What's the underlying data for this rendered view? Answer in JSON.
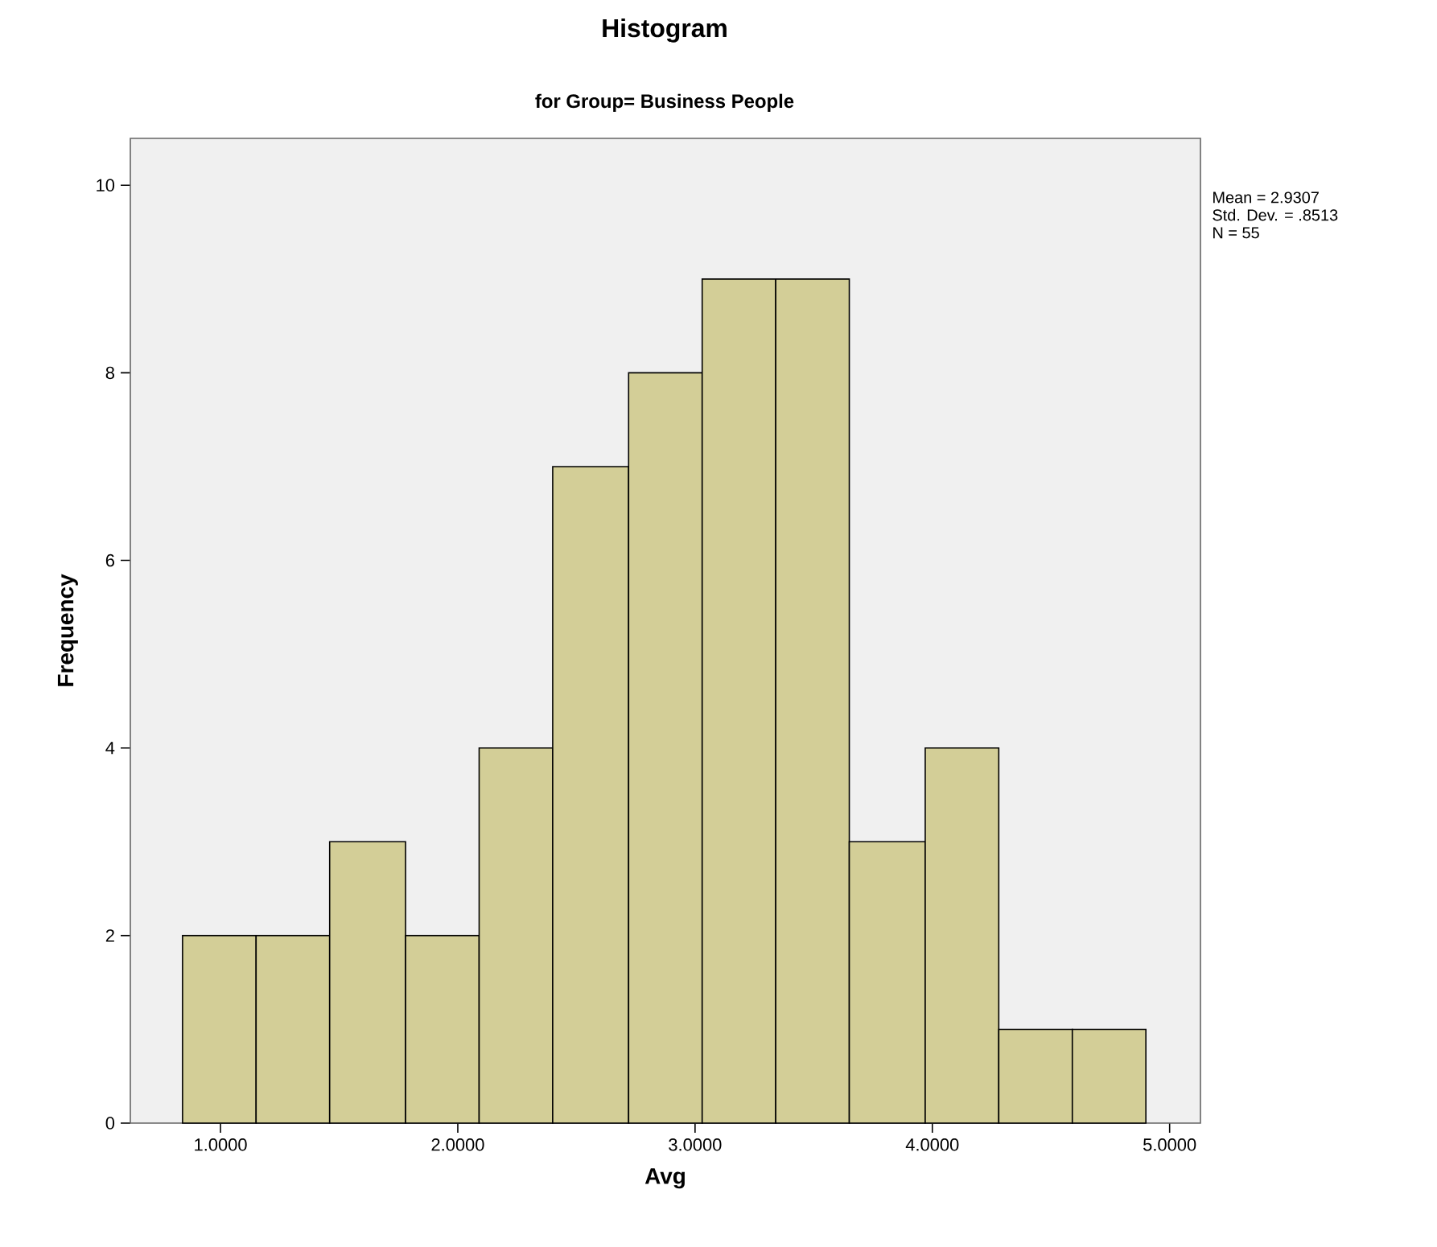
{
  "chart_data": {
    "type": "histogram",
    "title": "Histogram",
    "subtitle": "for Group= Business People",
    "xlabel": "Avg",
    "ylabel": "Frequency",
    "annotations": [
      "Mean = 2.9307",
      "Std. Dev. = .8513",
      "N = 55"
    ],
    "bins": [
      0.84,
      1.15,
      1.46,
      1.78,
      2.09,
      2.4,
      2.72,
      3.03,
      3.34,
      3.65,
      3.97,
      4.28,
      4.59,
      4.9
    ],
    "values": [
      2,
      2,
      3,
      2,
      4,
      7,
      8,
      9,
      9,
      3,
      4,
      1,
      1
    ],
    "color": "#d3ce97",
    "xlim": [
      0.62,
      5.13
    ],
    "ylim": [
      0,
      10.5
    ],
    "xticks": [
      {
        "value": 1,
        "label": "1.0000"
      },
      {
        "value": 2,
        "label": "2.0000"
      },
      {
        "value": 3,
        "label": "3.0000"
      },
      {
        "value": 4,
        "label": "4.0000"
      },
      {
        "value": 5,
        "label": "5.0000"
      }
    ],
    "yticks": [
      0,
      2,
      4,
      6,
      8,
      10
    ]
  }
}
